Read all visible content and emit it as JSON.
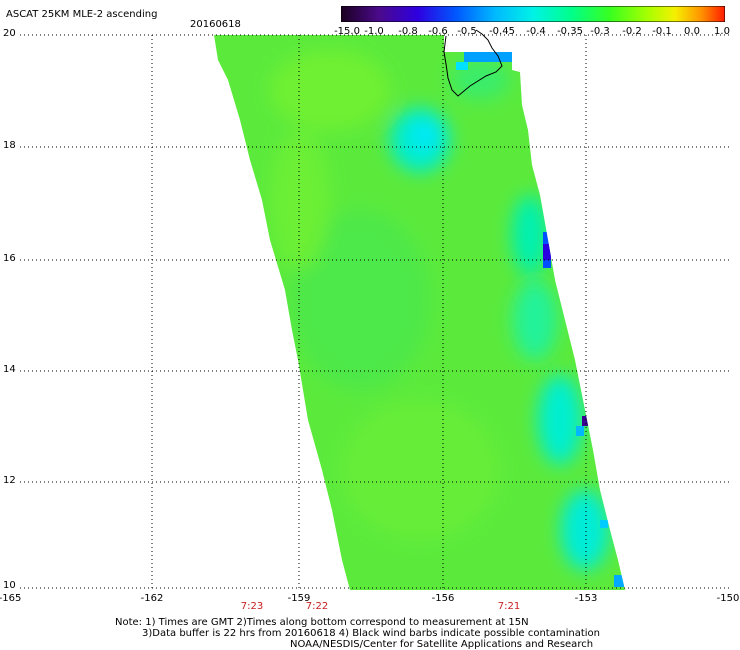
{
  "header": {
    "title": "ASCAT 25KM MLE-2 ascending",
    "date": "20160618"
  },
  "colorbar": {
    "labels": [
      "-15.0",
      "-1.0",
      "-0.8",
      "-0.6",
      "-0.5",
      "-0.45",
      "-0.4",
      "-0.35",
      "-0.3",
      "-0.2",
      "-0.1",
      "0.0",
      "1.0"
    ],
    "colors": [
      "#2a0030",
      "#55108c",
      "#3a00d8",
      "#0040ff",
      "#009bff",
      "#00d8ff",
      "#00f5d2",
      "#00ff80",
      "#30ff20",
      "#90ff00",
      "#f0f000",
      "#ffa000",
      "#ff3000"
    ]
  },
  "map": {
    "lat_labels": [
      "20",
      "18",
      "16",
      "14",
      "12",
      "10"
    ],
    "lon_labels": [
      "-165",
      "-162",
      "-159",
      "-156",
      "-153",
      "-150"
    ],
    "time_labels": [
      "7:23",
      "7:22",
      "7:21"
    ]
  },
  "notes": {
    "line1": "Note: 1) Times are GMT 2)Times along bottom correspond to measurement at 15N",
    "line2": "3)Data buffer is 22 hrs from 20160618 4) Black wind barbs indicate possible contamination",
    "line3": "NOAA/NESDIS/Center for Satellite Applications and Research"
  }
}
